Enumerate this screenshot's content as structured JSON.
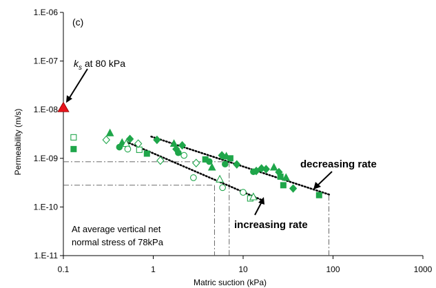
{
  "chart_data": {
    "type": "scatter",
    "panel_label": "(c)",
    "xlabel": "Matric suction (kPa)",
    "ylabel": "Permeability (m/s)",
    "xscale": "log",
    "yscale": "log",
    "xlim": [
      0.1,
      1000
    ],
    "ylim": [
      1e-11,
      1e-06
    ],
    "xticks": [
      {
        "v": 0.1,
        "label": "0.1"
      },
      {
        "v": 1,
        "label": "1"
      },
      {
        "v": 10,
        "label": "10"
      },
      {
        "v": 100,
        "label": "100"
      },
      {
        "v": 1000,
        "label": "1000"
      }
    ],
    "yticks": [
      {
        "v": 1e-11,
        "label": "1.E-11"
      },
      {
        "v": 1e-10,
        "label": "1.E-10"
      },
      {
        "v": 1e-09,
        "label": "1.E-09"
      },
      {
        "v": 1e-08,
        "label": "1.E-08"
      },
      {
        "v": 1e-07,
        "label": "1.E-07"
      },
      {
        "v": 1e-06,
        "label": "1.E-06"
      }
    ],
    "grid": false,
    "colors": {
      "green": "#1fa64a",
      "red": "#e8141c",
      "axis": "#000000",
      "guide": "#555555"
    },
    "ks_marker": {
      "x": 0.1,
      "y": 1.1e-08,
      "label_k": "k",
      "label_sub": "s",
      "label_rest": " at 80 kPa"
    },
    "series": [
      {
        "marker": "square-filled",
        "points": [
          [
            0.13,
            1.55e-09
          ],
          [
            0.85,
            1.25e-09
          ],
          [
            3.8,
            9.5e-10
          ],
          [
            7.2,
            1e-09
          ],
          [
            26,
            4.2e-10
          ],
          [
            28,
            2.8e-10
          ],
          [
            70,
            1.75e-10
          ]
        ]
      },
      {
        "marker": "square-open",
        "points": [
          [
            0.13,
            2.7e-09
          ],
          [
            0.7,
            1.5e-09
          ],
          [
            12,
            1.5e-10
          ]
        ]
      },
      {
        "marker": "triangle-filled",
        "points": [
          [
            0.33,
            3.3e-09
          ],
          [
            0.45,
            2.1e-09
          ],
          [
            1.7,
            2e-09
          ],
          [
            4.5,
            6.5e-10
          ],
          [
            6.5,
            1.1e-09
          ],
          [
            22,
            6.5e-10
          ],
          [
            30,
            4e-10
          ]
        ]
      },
      {
        "marker": "triangle-open",
        "points": [
          [
            0.5,
            2e-09
          ],
          [
            5.5,
            3.7e-10
          ],
          [
            13,
            1.6e-10
          ]
        ]
      },
      {
        "marker": "diamond-filled",
        "points": [
          [
            0.55,
            2.5e-09
          ],
          [
            1.1,
            2.4e-09
          ],
          [
            1.8,
            1.55e-09
          ],
          [
            2.1,
            1.85e-09
          ],
          [
            5.8,
            1.15e-09
          ],
          [
            8.5,
            7.5e-10
          ],
          [
            14,
            5.5e-10
          ],
          [
            16,
            6.2e-10
          ],
          [
            18,
            6e-10
          ],
          [
            25,
            5.2e-10
          ],
          [
            36,
            2.4e-10
          ]
        ]
      },
      {
        "marker": "diamond-open",
        "points": [
          [
            0.3,
            2.4e-09
          ],
          [
            0.68,
            2e-09
          ],
          [
            1.2,
            9e-10
          ],
          [
            3.0,
            8e-10
          ]
        ]
      },
      {
        "marker": "circle-filled",
        "points": [
          [
            0.42,
            1.7e-09
          ],
          [
            1.9,
            1.3e-09
          ],
          [
            4.2,
            8.6e-10
          ],
          [
            6.3,
            7.6e-10
          ],
          [
            13,
            5.3e-10
          ]
        ]
      },
      {
        "marker": "circle-open",
        "points": [
          [
            0.52,
            1.55e-09
          ],
          [
            2.2,
            1.15e-09
          ],
          [
            2.8,
            4e-10
          ],
          [
            5.9,
            2.5e-10
          ],
          [
            10,
            2e-10
          ]
        ]
      }
    ],
    "trend_lines": [
      {
        "name": "decreasing rate",
        "from": [
          0.95,
          2.8e-09
        ],
        "to": [
          95,
          1.75e-10
        ]
      },
      {
        "name": "increasing rate",
        "from": [
          0.5,
          2.2e-09
        ],
        "to": [
          16,
          1.4e-10
        ]
      }
    ],
    "guides": [
      {
        "y": 8.5e-10,
        "x_end": 7
      },
      {
        "y": 2.8e-10,
        "x_end": 4.8
      },
      {
        "x": 4.8,
        "y_from": 2.8e-10
      },
      {
        "x": 7,
        "y_from": 8.5e-10
      },
      {
        "x": 90,
        "y_from": 1.75e-10
      }
    ],
    "annotations": {
      "decreasing": "decreasing rate",
      "increasing": "increasing rate",
      "note_line1": "At average vertical net",
      "note_line2": "normal stress of 78kPa"
    }
  }
}
